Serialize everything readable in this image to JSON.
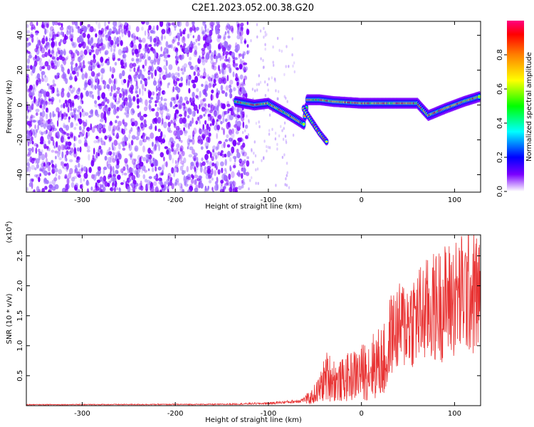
{
  "title": "C2E1.2023.052.00.38.G20",
  "chart_data": [
    {
      "type": "heatmap",
      "xlabel": "Height of straight line (km)",
      "ylabel": "Frequency (Hz)",
      "xlim": [
        -360,
        128
      ],
      "ylim": [
        -50,
        48
      ],
      "xticks": [
        -300,
        -200,
        -100,
        0,
        100
      ],
      "yticks": [
        -40,
        -20,
        0,
        20,
        40
      ],
      "colorbar": {
        "label": "Normalized spectral amplitude",
        "range": [
          0,
          1
        ],
        "ticks": [
          0.0,
          0.2,
          0.4,
          0.6,
          0.8
        ],
        "tick_labels": [
          "0.0",
          "0.2",
          "0.4",
          "0.6",
          "0.8"
        ]
      },
      "noise_region_km": [
        -360,
        -130
      ],
      "signal_track": [
        {
          "x": -135,
          "y": 2
        },
        {
          "x": -115,
          "y": 0
        },
        {
          "x": -100,
          "y": 1
        },
        {
          "x": -80,
          "y": -5
        },
        {
          "x": -62,
          "y": -11
        },
        {
          "x": -58,
          "y": 3
        },
        {
          "x": -45,
          "y": 3
        },
        {
          "x": -30,
          "y": 2
        },
        {
          "x": 0,
          "y": 1
        },
        {
          "x": 40,
          "y": 1
        },
        {
          "x": 60,
          "y": 1
        },
        {
          "x": 72,
          "y": -6
        },
        {
          "x": 90,
          "y": -2
        },
        {
          "x": 110,
          "y": 2
        },
        {
          "x": 128,
          "y": 5
        }
      ],
      "secondary_track": [
        {
          "x": -62,
          "y": -2
        },
        {
          "x": -55,
          "y": -8
        },
        {
          "x": -45,
          "y": -16
        },
        {
          "x": -36,
          "y": -22
        }
      ]
    },
    {
      "type": "line",
      "xlabel": "Height of straight line (km)",
      "ylabel": "SNR (10 * v/v)",
      "y_multiplier": "(x10",
      "y_multiplier_exp": "4",
      "y_multiplier_close": ")",
      "xlim": [
        -360,
        128
      ],
      "ylim": [
        0,
        28500
      ],
      "xticks": [
        -300,
        -200,
        -100,
        0,
        100
      ],
      "yticks": [
        5000,
        10000,
        15000,
        20000,
        25000
      ],
      "ytick_labels": [
        "0.5",
        "1.0",
        "1.5",
        "2.0",
        "2.5"
      ],
      "line_color": "#e83232",
      "envelope": [
        {
          "x": -360,
          "y": 300
        },
        {
          "x": -150,
          "y": 400
        },
        {
          "x": -100,
          "y": 700
        },
        {
          "x": -70,
          "y": 1300
        },
        {
          "x": -55,
          "y": 2200
        },
        {
          "x": -45,
          "y": 5000
        },
        {
          "x": -38,
          "y": 9000
        },
        {
          "x": -32,
          "y": 8500
        },
        {
          "x": -25,
          "y": 7000
        },
        {
          "x": -15,
          "y": 8500
        },
        {
          "x": 0,
          "y": 10000
        },
        {
          "x": 15,
          "y": 12500
        },
        {
          "x": 25,
          "y": 13500
        },
        {
          "x": 35,
          "y": 15000
        },
        {
          "x": 50,
          "y": 17000
        },
        {
          "x": 70,
          "y": 19000
        },
        {
          "x": 90,
          "y": 21000
        },
        {
          "x": 105,
          "y": 22000
        },
        {
          "x": 115,
          "y": 23500
        },
        {
          "x": 128,
          "y": 22000
        }
      ]
    }
  ]
}
